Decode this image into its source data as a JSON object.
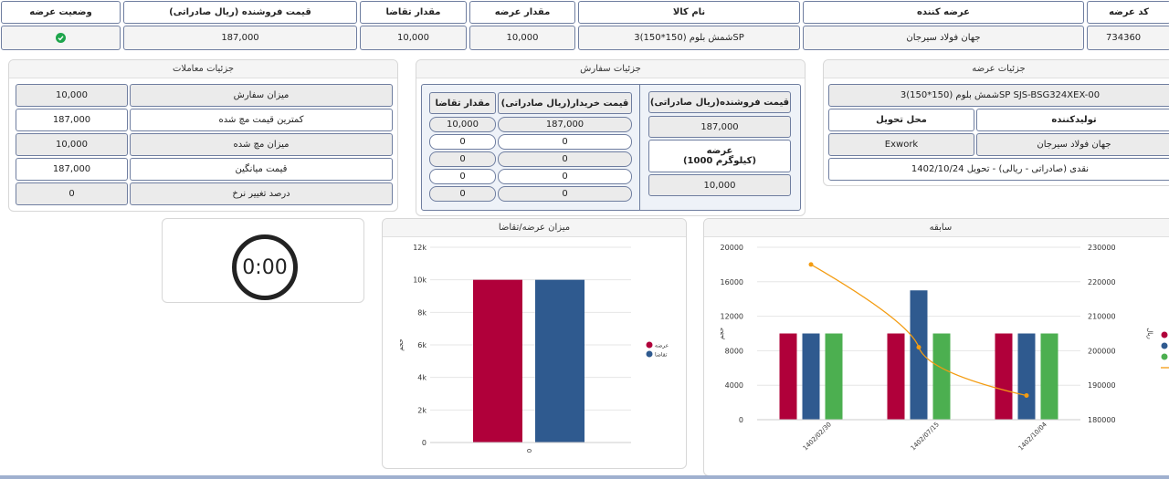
{
  "table": {
    "headers": [
      "کد عرضه",
      "عرضه کننده",
      "نام کالا",
      "مقدار عرضه",
      "مقدار تقاضا",
      "قیمت فروشنده (ریال صادراتی)",
      "وضعیت عرضه"
    ],
    "row": {
      "code": "734360",
      "supplier": "جهان فولاد سیرجان",
      "product": "شمش بلوم (150*150)3SP",
      "offer_qty": "10,000",
      "demand_qty": "10,000",
      "seller_price": "187,000"
    }
  },
  "supply_details": {
    "title": "جزئیات عرضه",
    "product_full": "شمش بلوم (150*150)3SP SJS-BSG324XEX-00",
    "producer_label": "تولیدکننده",
    "delivery_label": "محل تحویل",
    "producer": "جهان فولاد سیرجان",
    "delivery": "Exwork",
    "terms": "نقدی (صادراتی - ریالی) - تحویل 1402/10/24"
  },
  "order_details": {
    "title": "جزئیات سفارش",
    "seller_price_label": "قیمت فروشنده(ریال صادراتی)",
    "seller_price": "187,000",
    "offer_label_1": "عرضه",
    "offer_label_2": "(1000 کیلوگرم)",
    "offer_value": "10,000",
    "buyer_price_label": "قیمت خریدار(ریال صادراتی)",
    "demand_qty_label": "مقدار تقاضا",
    "rows": [
      {
        "price": "187,000",
        "qty": "10,000"
      },
      {
        "price": "0",
        "qty": "0"
      },
      {
        "price": "0",
        "qty": "0"
      },
      {
        "price": "0",
        "qty": "0"
      },
      {
        "price": "0",
        "qty": "0"
      }
    ]
  },
  "trade_details": {
    "title": "جزئیات معاملات",
    "rows": [
      {
        "label": "میزان سفارش",
        "value": "10,000"
      },
      {
        "label": "کمترین قیمت مچ شده",
        "value": "187,000"
      },
      {
        "label": "میزان مچ شده",
        "value": "10,000"
      },
      {
        "label": "قیمت میانگین",
        "value": "187,000"
      },
      {
        "label": "درصد تغییر نرخ",
        "value": "0"
      }
    ]
  },
  "timer": {
    "value": "0:00"
  },
  "colors": {
    "crimson": "#b0003a",
    "navy": "#2f5a8f",
    "green": "#4caf50",
    "orange": "#f39c12",
    "status_ok": "#1ea54c"
  },
  "chart_data": [
    {
      "type": "bar",
      "title": "میزان عرضه/تقاضا",
      "categories": [
        "0"
      ],
      "series": [
        {
          "name": "عرضه",
          "values": [
            10000
          ]
        },
        {
          "name": "تقاضا",
          "values": [
            10000
          ]
        }
      ],
      "ylabel": "حجم",
      "ylim": [
        0,
        12000
      ],
      "yticks": [
        "0",
        "2k",
        "4k",
        "6k",
        "8k",
        "10k",
        "12k"
      ],
      "legend": "right"
    },
    {
      "type": "bar",
      "title": "سابقه",
      "categories": [
        "1402/02/30",
        "1402/07/15",
        "1402/10/04"
      ],
      "series": [
        {
          "values": [
            10000,
            10000,
            10000
          ]
        },
        {
          "values": [
            10000,
            15000,
            10000
          ]
        },
        {
          "values": [
            10000,
            10000,
            10000
          ]
        }
      ],
      "line": {
        "values": [
          225000,
          201000,
          187000
        ]
      },
      "ylabel": "حجم",
      "y2label": "ریال",
      "ylim": [
        0,
        20000
      ],
      "yticks": [
        "0",
        "4000",
        "8000",
        "12000",
        "16000",
        "20000"
      ],
      "y2lim": [
        180000,
        230000
      ],
      "y2ticks": [
        "180000",
        "190000",
        "200000",
        "210000",
        "220000",
        "230000"
      ],
      "legend": "right"
    }
  ]
}
